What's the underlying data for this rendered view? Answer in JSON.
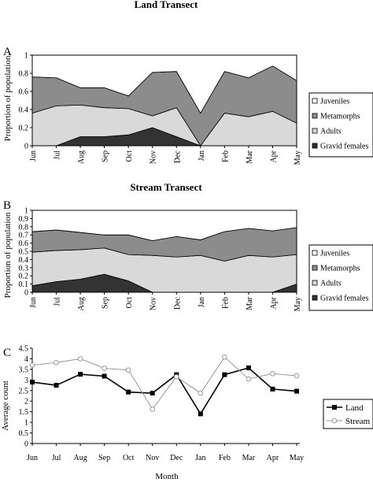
{
  "chart_data": [
    {
      "panel_letter": "A",
      "type": "area",
      "stacked": true,
      "title": "Land Transect",
      "ylabel": "Proportion of population",
      "xlabel": "",
      "ylim": [
        0,
        1
      ],
      "yticks": [
        "0",
        "0.2",
        "0.4",
        "0.6",
        "0.8",
        "1"
      ],
      "categories": [
        "Jun",
        "Jul",
        "Aug",
        "Sep",
        "Oct",
        "Nov",
        "Dec",
        "Jan",
        "Feb",
        "Mar",
        "Apr",
        "May"
      ],
      "legend_position": "right",
      "series": [
        {
          "name": "Gravid females",
          "color": "#333333",
          "values": [
            0,
            0,
            0.1,
            0.1,
            0.12,
            0.2,
            0.1,
            0,
            0,
            0,
            0,
            0
          ]
        },
        {
          "name": "Adults",
          "color": "#d9d9d9",
          "values": [
            0.36,
            0.44,
            0.35,
            0.32,
            0.29,
            0.13,
            0.32,
            0,
            0.36,
            0.32,
            0.38,
            0.25
          ]
        },
        {
          "name": "Metamorphs",
          "color": "#8c8c8c",
          "values": [
            0.4,
            0.31,
            0.19,
            0.22,
            0.14,
            0.48,
            0.4,
            0.36,
            0.46,
            0.43,
            0.5,
            0.47
          ]
        },
        {
          "name": "Juveniles",
          "color": "#ffffff",
          "values": [
            0,
            0,
            0,
            0,
            0,
            0,
            0,
            0,
            0,
            0,
            0,
            0
          ]
        }
      ],
      "legend_order": [
        "Juveniles",
        "Metamorphs",
        "Adults",
        "Gravid females"
      ]
    },
    {
      "panel_letter": "B",
      "type": "area",
      "stacked": true,
      "title": "Stream Transect",
      "ylabel": "Proportion of population",
      "xlabel": "",
      "ylim": [
        0,
        1
      ],
      "yticks": [
        "0",
        "0.1",
        "0.2",
        "0.3",
        "0.4",
        "0.5",
        "0.6",
        "0.7",
        "0.8",
        "0.9",
        "1"
      ],
      "categories": [
        "Jun",
        "Jul",
        "Aug",
        "Sep",
        "Oct",
        "Nov",
        "Dec",
        "Jan",
        "Feb",
        "Mar",
        "Apr",
        "May"
      ],
      "legend_position": "right",
      "series": [
        {
          "name": "Gravid females",
          "color": "#333333",
          "values": [
            0.08,
            0.13,
            0.16,
            0.22,
            0.14,
            0,
            0,
            0,
            0,
            0,
            0,
            0.1
          ]
        },
        {
          "name": "Adults",
          "color": "#d9d9d9",
          "values": [
            0.41,
            0.38,
            0.36,
            0.32,
            0.32,
            0.45,
            0.43,
            0.45,
            0.38,
            0.45,
            0.43,
            0.36
          ]
        },
        {
          "name": "Metamorphs",
          "color": "#8c8c8c",
          "values": [
            0.25,
            0.25,
            0.21,
            0.16,
            0.24,
            0.18,
            0.25,
            0.19,
            0.36,
            0.33,
            0.32,
            0.33
          ]
        },
        {
          "name": "Juveniles",
          "color": "#ffffff",
          "values": [
            0,
            0,
            0,
            0,
            0,
            0,
            0,
            0,
            0,
            0,
            0,
            0
          ]
        }
      ],
      "legend_order": [
        "Juveniles",
        "Metamorphs",
        "Adults",
        "Gravid females"
      ]
    },
    {
      "panel_letter": "C",
      "type": "line",
      "title": "",
      "ylabel": "Average count",
      "xlabel": "Month",
      "ylim": [
        0,
        4.5
      ],
      "yticks": [
        "0",
        "0.5",
        "1",
        "1.5",
        "2",
        "2.5",
        "3",
        "3.5",
        "4",
        "4.5"
      ],
      "categories": [
        "Jun",
        "Jul",
        "Aug",
        "Sep",
        "Oct",
        "Nov",
        "Dec",
        "Jan",
        "Feb",
        "Mar",
        "Apr",
        "May"
      ],
      "legend_position": "right",
      "series": [
        {
          "name": "Land",
          "color": "#000000",
          "marker": "square",
          "values": [
            2.9,
            2.75,
            3.27,
            3.18,
            2.43,
            2.38,
            3.25,
            1.4,
            3.25,
            3.57,
            2.57,
            2.47
          ]
        },
        {
          "name": "Stream",
          "color": "#999999",
          "marker": "circle",
          "values": [
            3.7,
            3.82,
            4.0,
            3.55,
            3.47,
            1.62,
            3.15,
            2.38,
            4.08,
            3.05,
            3.3,
            3.2
          ]
        }
      ]
    }
  ]
}
